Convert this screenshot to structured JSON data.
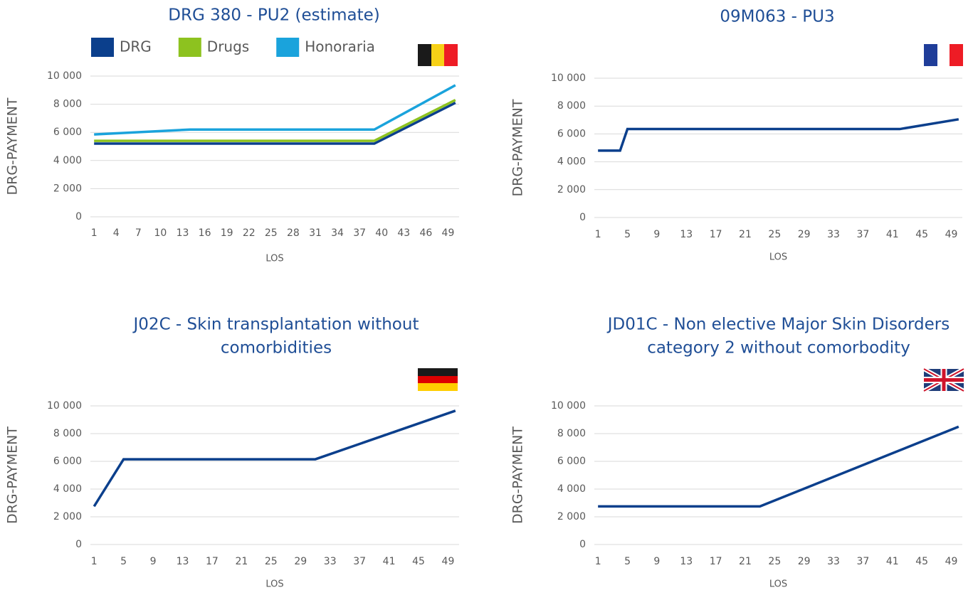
{
  "chart_data": [
    {
      "type": "line",
      "title": [
        "DRG 380 - PU2 (estimate)"
      ],
      "x_label": "LOS",
      "y_label": "DRG-PAYMENT",
      "x": [
        1,
        14,
        39,
        50
      ],
      "series": [
        {
          "name": "DRG",
          "color": "#0b3f8c",
          "values": [
            5200,
            5200,
            5200,
            8100
          ]
        },
        {
          "name": "Drugs",
          "color": "#8dc21f",
          "values": [
            5400,
            5400,
            5400,
            8300
          ]
        },
        {
          "name": "Honoraria",
          "color": "#1aa3dc",
          "values": [
            5850,
            6200,
            6200,
            9350
          ]
        }
      ],
      "xlim": [
        0.5,
        50.5
      ],
      "xticks": [
        1,
        4,
        7,
        10,
        13,
        16,
        19,
        22,
        25,
        28,
        31,
        34,
        37,
        40,
        43,
        46,
        49
      ],
      "ylim": [
        0,
        10000
      ],
      "yticks": [
        0,
        {
          "value": 2000,
          "label": "2 000"
        },
        {
          "value": 4000,
          "label": "4 000"
        },
        {
          "value": 6000,
          "label": "6 000"
        },
        {
          "value": 8000,
          "label": "8 000"
        },
        {
          "value": 10000,
          "label": "10 000"
        }
      ],
      "grid": true,
      "legend": "top-left"
    },
    {
      "type": "line",
      "title": [
        "09M063 - PU3"
      ],
      "x_label": "LOS",
      "y_label": "DRG-PAYMENT",
      "x": [
        1,
        4,
        5,
        42,
        50
      ],
      "series": [
        {
          "name": "DRG",
          "color": "#0b3f8c",
          "values": [
            4800,
            4800,
            6350,
            6350,
            7050
          ]
        }
      ],
      "xlim": [
        0.5,
        50.5
      ],
      "xticks": [
        1,
        5,
        9,
        13,
        17,
        21,
        25,
        29,
        33,
        37,
        41,
        45,
        49
      ],
      "ylim": [
        0,
        10000
      ],
      "yticks": [
        0,
        {
          "value": 2000,
          "label": "2 000"
        },
        {
          "value": 4000,
          "label": "4 000"
        },
        {
          "value": 6000,
          "label": "6 000"
        },
        {
          "value": 8000,
          "label": "8 000"
        },
        {
          "value": 10000,
          "label": "10 000"
        }
      ],
      "grid": true
    },
    {
      "type": "line",
      "title": [
        "J02C - Skin transplantation without",
        "comorbidities"
      ],
      "x_label": "LOS",
      "y_label": "DRG-PAYMENT",
      "x": [
        1,
        5,
        31,
        50
      ],
      "series": [
        {
          "name": "DRG",
          "color": "#0b3f8c",
          "values": [
            2750,
            6150,
            6150,
            9650
          ]
        }
      ],
      "xlim": [
        0.5,
        50.5
      ],
      "xticks": [
        1,
        5,
        9,
        13,
        17,
        21,
        25,
        29,
        33,
        37,
        41,
        45,
        49
      ],
      "ylim": [
        0,
        10000
      ],
      "yticks": [
        0,
        {
          "value": 2000,
          "label": "2 000"
        },
        {
          "value": 4000,
          "label": "4 000"
        },
        {
          "value": 6000,
          "label": "6 000"
        },
        {
          "value": 8000,
          "label": "8 000"
        },
        {
          "value": 10000,
          "label": "10 000"
        }
      ],
      "grid": true
    },
    {
      "type": "line",
      "title": [
        "JD01C - Non elective Major Skin Disorders",
        "category 2 without comorbodity"
      ],
      "x_label": "LOS",
      "y_label": "DRG-PAYMENT",
      "x": [
        1,
        23,
        50
      ],
      "series": [
        {
          "name": "DRG",
          "color": "#0b3f8c",
          "values": [
            2750,
            2750,
            8500
          ]
        }
      ],
      "xlim": [
        0.5,
        50.5
      ],
      "xticks": [
        1,
        5,
        9,
        13,
        17,
        21,
        25,
        29,
        33,
        37,
        41,
        45,
        49
      ],
      "ylim": [
        0,
        10000
      ],
      "yticks": [
        0,
        {
          "value": 2000,
          "label": "2 000"
        },
        {
          "value": 4000,
          "label": "4 000"
        },
        {
          "value": 6000,
          "label": "6 000"
        },
        {
          "value": 8000,
          "label": "8 000"
        },
        {
          "value": 10000,
          "label": "10 000"
        }
      ],
      "grid": true
    }
  ]
}
